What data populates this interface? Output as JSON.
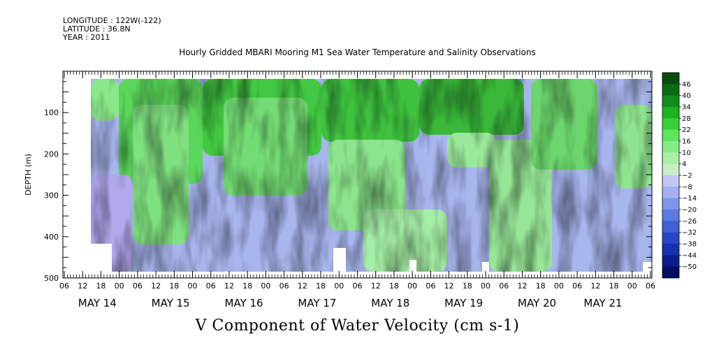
{
  "header": {
    "longitude": "LONGITUDE : 122W(-122)",
    "latitude": "LATITUDE : 36.8N",
    "year": "YEAR : 2011"
  },
  "chart_data": {
    "type": "heatmap",
    "title": "Hourly Gridded MBARI Mooring M1 Sea Water Temperature and Salinity Observations",
    "xlabel": "V Component of Water Velocity (cm s-1)",
    "ylabel": "DEPTH (m)",
    "ylim": [
      500,
      0
    ],
    "y_ticks": [
      100,
      200,
      300,
      400,
      500
    ],
    "x_hour_ticks": [
      "06",
      "12",
      "18",
      "00",
      "06",
      "12",
      "18",
      "00",
      "06",
      "12",
      "18",
      "00",
      "06",
      "12",
      "18",
      "00",
      "06",
      "12",
      "18",
      "00",
      "06",
      "12",
      "18",
      "00",
      "06",
      "12",
      "18",
      "00",
      "06",
      "12",
      "18",
      "00",
      "06"
    ],
    "x_day_labels": [
      "MAY 14",
      "MAY 15",
      "MAY 16",
      "MAY 17",
      "MAY 18",
      "MAY 19",
      "MAY 20",
      "MAY 21"
    ],
    "colorbar": {
      "levels": [
        -50,
        -44,
        -38,
        -32,
        -26,
        -20,
        -14,
        -8,
        -2,
        4,
        10,
        16,
        22,
        28,
        34,
        40,
        46
      ],
      "label_levels": [
        "46",
        "40",
        "34",
        "28",
        "22",
        "16",
        "10",
        "4",
        "−2",
        "−8",
        "−14",
        "−20",
        "−26",
        "−32",
        "−38",
        "−44",
        "−50"
      ],
      "colors": [
        "#000d66",
        "#0a1c8c",
        "#1a2fb0",
        "#2b45c8",
        "#3f5fd6",
        "#5c7ae0",
        "#7f95ea",
        "#a4b0f2",
        "#c2c8f6",
        "#c8f0c8",
        "#a8f0a8",
        "#84ee84",
        "#5ce45c",
        "#36d036",
        "#1eb21e",
        "#0f8c1a",
        "#0a6b14",
        "#064d0e"
      ]
    }
  }
}
